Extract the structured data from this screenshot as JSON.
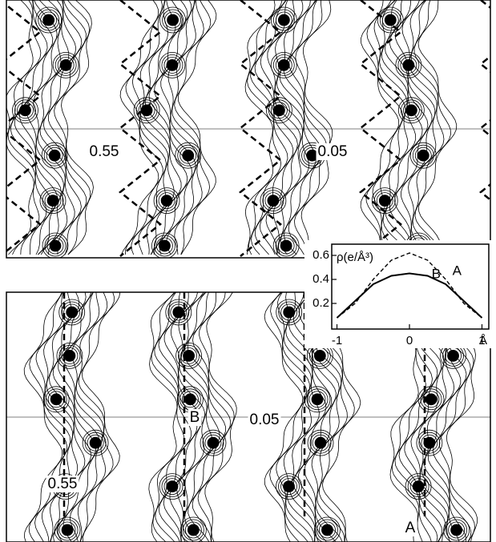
{
  "panels": [
    {
      "labels": [
        "0.55",
        "0.05"
      ]
    },
    {
      "labels": [
        "B",
        "0.05",
        "0.55",
        "A"
      ]
    }
  ],
  "chart_data": {
    "type": "line",
    "y_label": "ρ(e/Å³)",
    "x_unit": "Å",
    "x": [
      -1,
      -0.75,
      -0.5,
      -0.25,
      0,
      0.25,
      0.5,
      0.75,
      1
    ],
    "series": [
      {
        "name": "A",
        "color": "#000000",
        "dash": true,
        "values": [
          0.08,
          0.2,
          0.4,
          0.56,
          0.62,
          0.56,
          0.4,
          0.2,
          0.08
        ]
      },
      {
        "name": "B",
        "color": "#000000",
        "dash": false,
        "values": [
          0.08,
          0.22,
          0.36,
          0.43,
          0.45,
          0.43,
          0.36,
          0.22,
          0.08
        ]
      }
    ],
    "xlim": [
      -1.05,
      1.05
    ],
    "ylim": [
      0,
      0.68
    ],
    "xticks": [
      -1,
      0,
      1
    ],
    "yticks": [
      0.2,
      0.4,
      0.6
    ]
  }
}
